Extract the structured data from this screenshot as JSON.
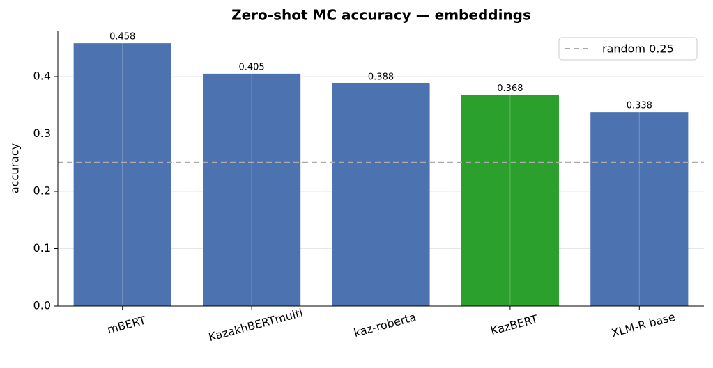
{
  "chart_data": {
    "type": "bar",
    "title": "Zero-shot MC accuracy — embeddings",
    "y_label": "accuracy",
    "categories": [
      "mBERT",
      "KazakhBERTmulti",
      "kaz-roberta",
      "KazBERT",
      "XLM-R base"
    ],
    "values": [
      0.458,
      0.405,
      0.388,
      0.368,
      0.338
    ],
    "colors": [
      "#4c72b0",
      "#4c72b0",
      "#4c72b0",
      "#2ca02c",
      "#4c72b0"
    ],
    "ylim": [
      0,
      0.48
    ],
    "yticks": [
      {
        "value": 0,
        "label": "0.0"
      },
      0.1,
      0.2,
      0.3,
      0.4
    ],
    "grid": true,
    "reference_line": {
      "value": 0.25,
      "label": "random 0.25",
      "color": "#aaaaaa",
      "style": "dashed"
    },
    "legend": "upper right"
  }
}
